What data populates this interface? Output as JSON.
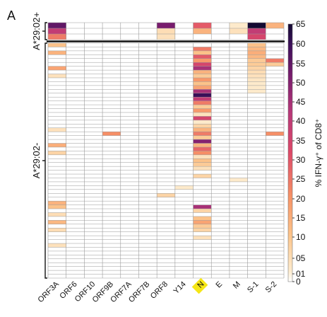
{
  "panel_label": "A",
  "chart_data": {
    "type": "heatmap",
    "title": "",
    "columns": [
      "ORF3A",
      "ORF6",
      "ORF10",
      "ORF9B",
      "ORF7A",
      "ORF7B",
      "ORF8",
      "Y14",
      "N",
      "E",
      "M",
      "S-1",
      "S-2"
    ],
    "highlighted_column": "N",
    "highlight_color": "#f5e616",
    "row_groups": [
      {
        "label": "A*29:02+",
        "rows": 3
      },
      {
        "label": "A*29:02-",
        "rows": 61
      }
    ],
    "colorbar": {
      "label": "% IFN-γ⁺ of CD8⁺",
      "ticks": [
        "65",
        "60",
        "55",
        "50",
        "45",
        "40",
        "35",
        "30",
        "25",
        "20",
        "15",
        "10",
        "05",
        "01",
        "0"
      ],
      "min": 0,
      "max": 65,
      "colormap": "magma_r"
    },
    "sparse_values": {
      "group1": [
        {
          "row": 0,
          "col": 0,
          "v": 55
        },
        {
          "row": 0,
          "col": 6,
          "v": 52
        },
        {
          "row": 0,
          "col": 8,
          "v": 30
        },
        {
          "row": 0,
          "col": 10,
          "v": 3
        },
        {
          "row": 0,
          "col": 11,
          "v": 65
        },
        {
          "row": 0,
          "col": 12,
          "v": 15
        },
        {
          "row": 1,
          "col": 0,
          "v": 40
        },
        {
          "row": 1,
          "col": 6,
          "v": 6
        },
        {
          "row": 1,
          "col": 8,
          "v": 15
        },
        {
          "row": 1,
          "col": 10,
          "v": 5
        },
        {
          "row": 1,
          "col": 11,
          "v": 40
        },
        {
          "row": 2,
          "col": 0,
          "v": 25
        },
        {
          "row": 2,
          "col": 6,
          "v": 5
        },
        {
          "row": 2,
          "col": 11,
          "v": 35
        }
      ],
      "group2": [
        {
          "row": 0,
          "col": 0,
          "v": 12
        },
        {
          "row": 0,
          "col": 11,
          "v": 12
        },
        {
          "row": 1,
          "col": 8,
          "v": 25
        },
        {
          "row": 1,
          "col": 11,
          "v": 14
        },
        {
          "row": 2,
          "col": 0,
          "v": 15
        },
        {
          "row": 2,
          "col": 8,
          "v": 12
        },
        {
          "row": 2,
          "col": 11,
          "v": 16
        },
        {
          "row": 3,
          "col": 8,
          "v": 30
        },
        {
          "row": 3,
          "col": 11,
          "v": 14
        },
        {
          "row": 4,
          "col": 8,
          "v": 20
        },
        {
          "row": 4,
          "col": 11,
          "v": 10
        },
        {
          "row": 4,
          "col": 12,
          "v": 25
        },
        {
          "row": 5,
          "col": 8,
          "v": 35
        },
        {
          "row": 5,
          "col": 11,
          "v": 10
        },
        {
          "row": 5,
          "col": 12,
          "v": 10
        },
        {
          "row": 6,
          "col": 0,
          "v": 18
        },
        {
          "row": 6,
          "col": 8,
          "v": 45
        },
        {
          "row": 6,
          "col": 11,
          "v": 8
        },
        {
          "row": 7,
          "col": 8,
          "v": 15
        },
        {
          "row": 7,
          "col": 11,
          "v": 6
        },
        {
          "row": 8,
          "col": 0,
          "v": 5
        },
        {
          "row": 8,
          "col": 8,
          "v": 10
        },
        {
          "row": 8,
          "col": 11,
          "v": 5
        },
        {
          "row": 9,
          "col": 8,
          "v": 20
        },
        {
          "row": 9,
          "col": 11,
          "v": 4
        },
        {
          "row": 10,
          "col": 8,
          "v": 12
        },
        {
          "row": 10,
          "col": 11,
          "v": 3
        },
        {
          "row": 11,
          "col": 8,
          "v": 18
        },
        {
          "row": 11,
          "col": 11,
          "v": 3
        },
        {
          "row": 12,
          "col": 8,
          "v": 45
        },
        {
          "row": 12,
          "col": 11,
          "v": 3
        },
        {
          "row": 13,
          "col": 8,
          "v": 60
        },
        {
          "row": 14,
          "col": 8,
          "v": 40
        },
        {
          "row": 15,
          "col": 8,
          "v": 25
        },
        {
          "row": 16,
          "col": 8,
          "v": 10
        },
        {
          "row": 17,
          "col": 8,
          "v": 20
        },
        {
          "row": 18,
          "col": 8,
          "v": 5
        },
        {
          "row": 19,
          "col": 8,
          "v": 35
        },
        {
          "row": 20,
          "col": 8,
          "v": 3
        },
        {
          "row": 21,
          "col": 8,
          "v": 8
        },
        {
          "row": 22,
          "col": 0,
          "v": 5
        },
        {
          "row": 22,
          "col": 8,
          "v": 15
        },
        {
          "row": 23,
          "col": 3,
          "v": 22
        },
        {
          "row": 23,
          "col": 8,
          "v": 25
        },
        {
          "row": 23,
          "col": 12,
          "v": 22
        },
        {
          "row": 24,
          "col": 8,
          "v": 10
        },
        {
          "row": 25,
          "col": 8,
          "v": 50
        },
        {
          "row": 26,
          "col": 0,
          "v": 16
        },
        {
          "row": 26,
          "col": 8,
          "v": 15
        },
        {
          "row": 27,
          "col": 8,
          "v": 28
        },
        {
          "row": 28,
          "col": 0,
          "v": 8
        },
        {
          "row": 28,
          "col": 8,
          "v": 22
        },
        {
          "row": 29,
          "col": 8,
          "v": 5
        },
        {
          "row": 30,
          "col": 8,
          "v": 12
        },
        {
          "row": 31,
          "col": 8,
          "v": 10
        },
        {
          "row": 32,
          "col": 8,
          "v": 5
        },
        {
          "row": 34,
          "col": 8,
          "v": 8
        },
        {
          "row": 35,
          "col": 10,
          "v": 3
        },
        {
          "row": 37,
          "col": 7,
          "v": 3
        },
        {
          "row": 39,
          "col": 6,
          "v": 8
        },
        {
          "row": 41,
          "col": 0,
          "v": 15
        },
        {
          "row": 42,
          "col": 0,
          "v": 12
        },
        {
          "row": 42,
          "col": 8,
          "v": 45
        },
        {
          "row": 43,
          "col": 8,
          "v": 8
        },
        {
          "row": 44,
          "col": 0,
          "v": 6
        },
        {
          "row": 45,
          "col": 8,
          "v": 12
        },
        {
          "row": 46,
          "col": 0,
          "v": 14
        },
        {
          "row": 46,
          "col": 8,
          "v": 18
        },
        {
          "row": 47,
          "col": 8,
          "v": 10
        },
        {
          "row": 48,
          "col": 0,
          "v": 6
        },
        {
          "row": 48,
          "col": 8,
          "v": 8
        },
        {
          "row": 50,
          "col": 8,
          "v": 5
        },
        {
          "row": 52,
          "col": 0,
          "v": 5
        }
      ]
    }
  }
}
